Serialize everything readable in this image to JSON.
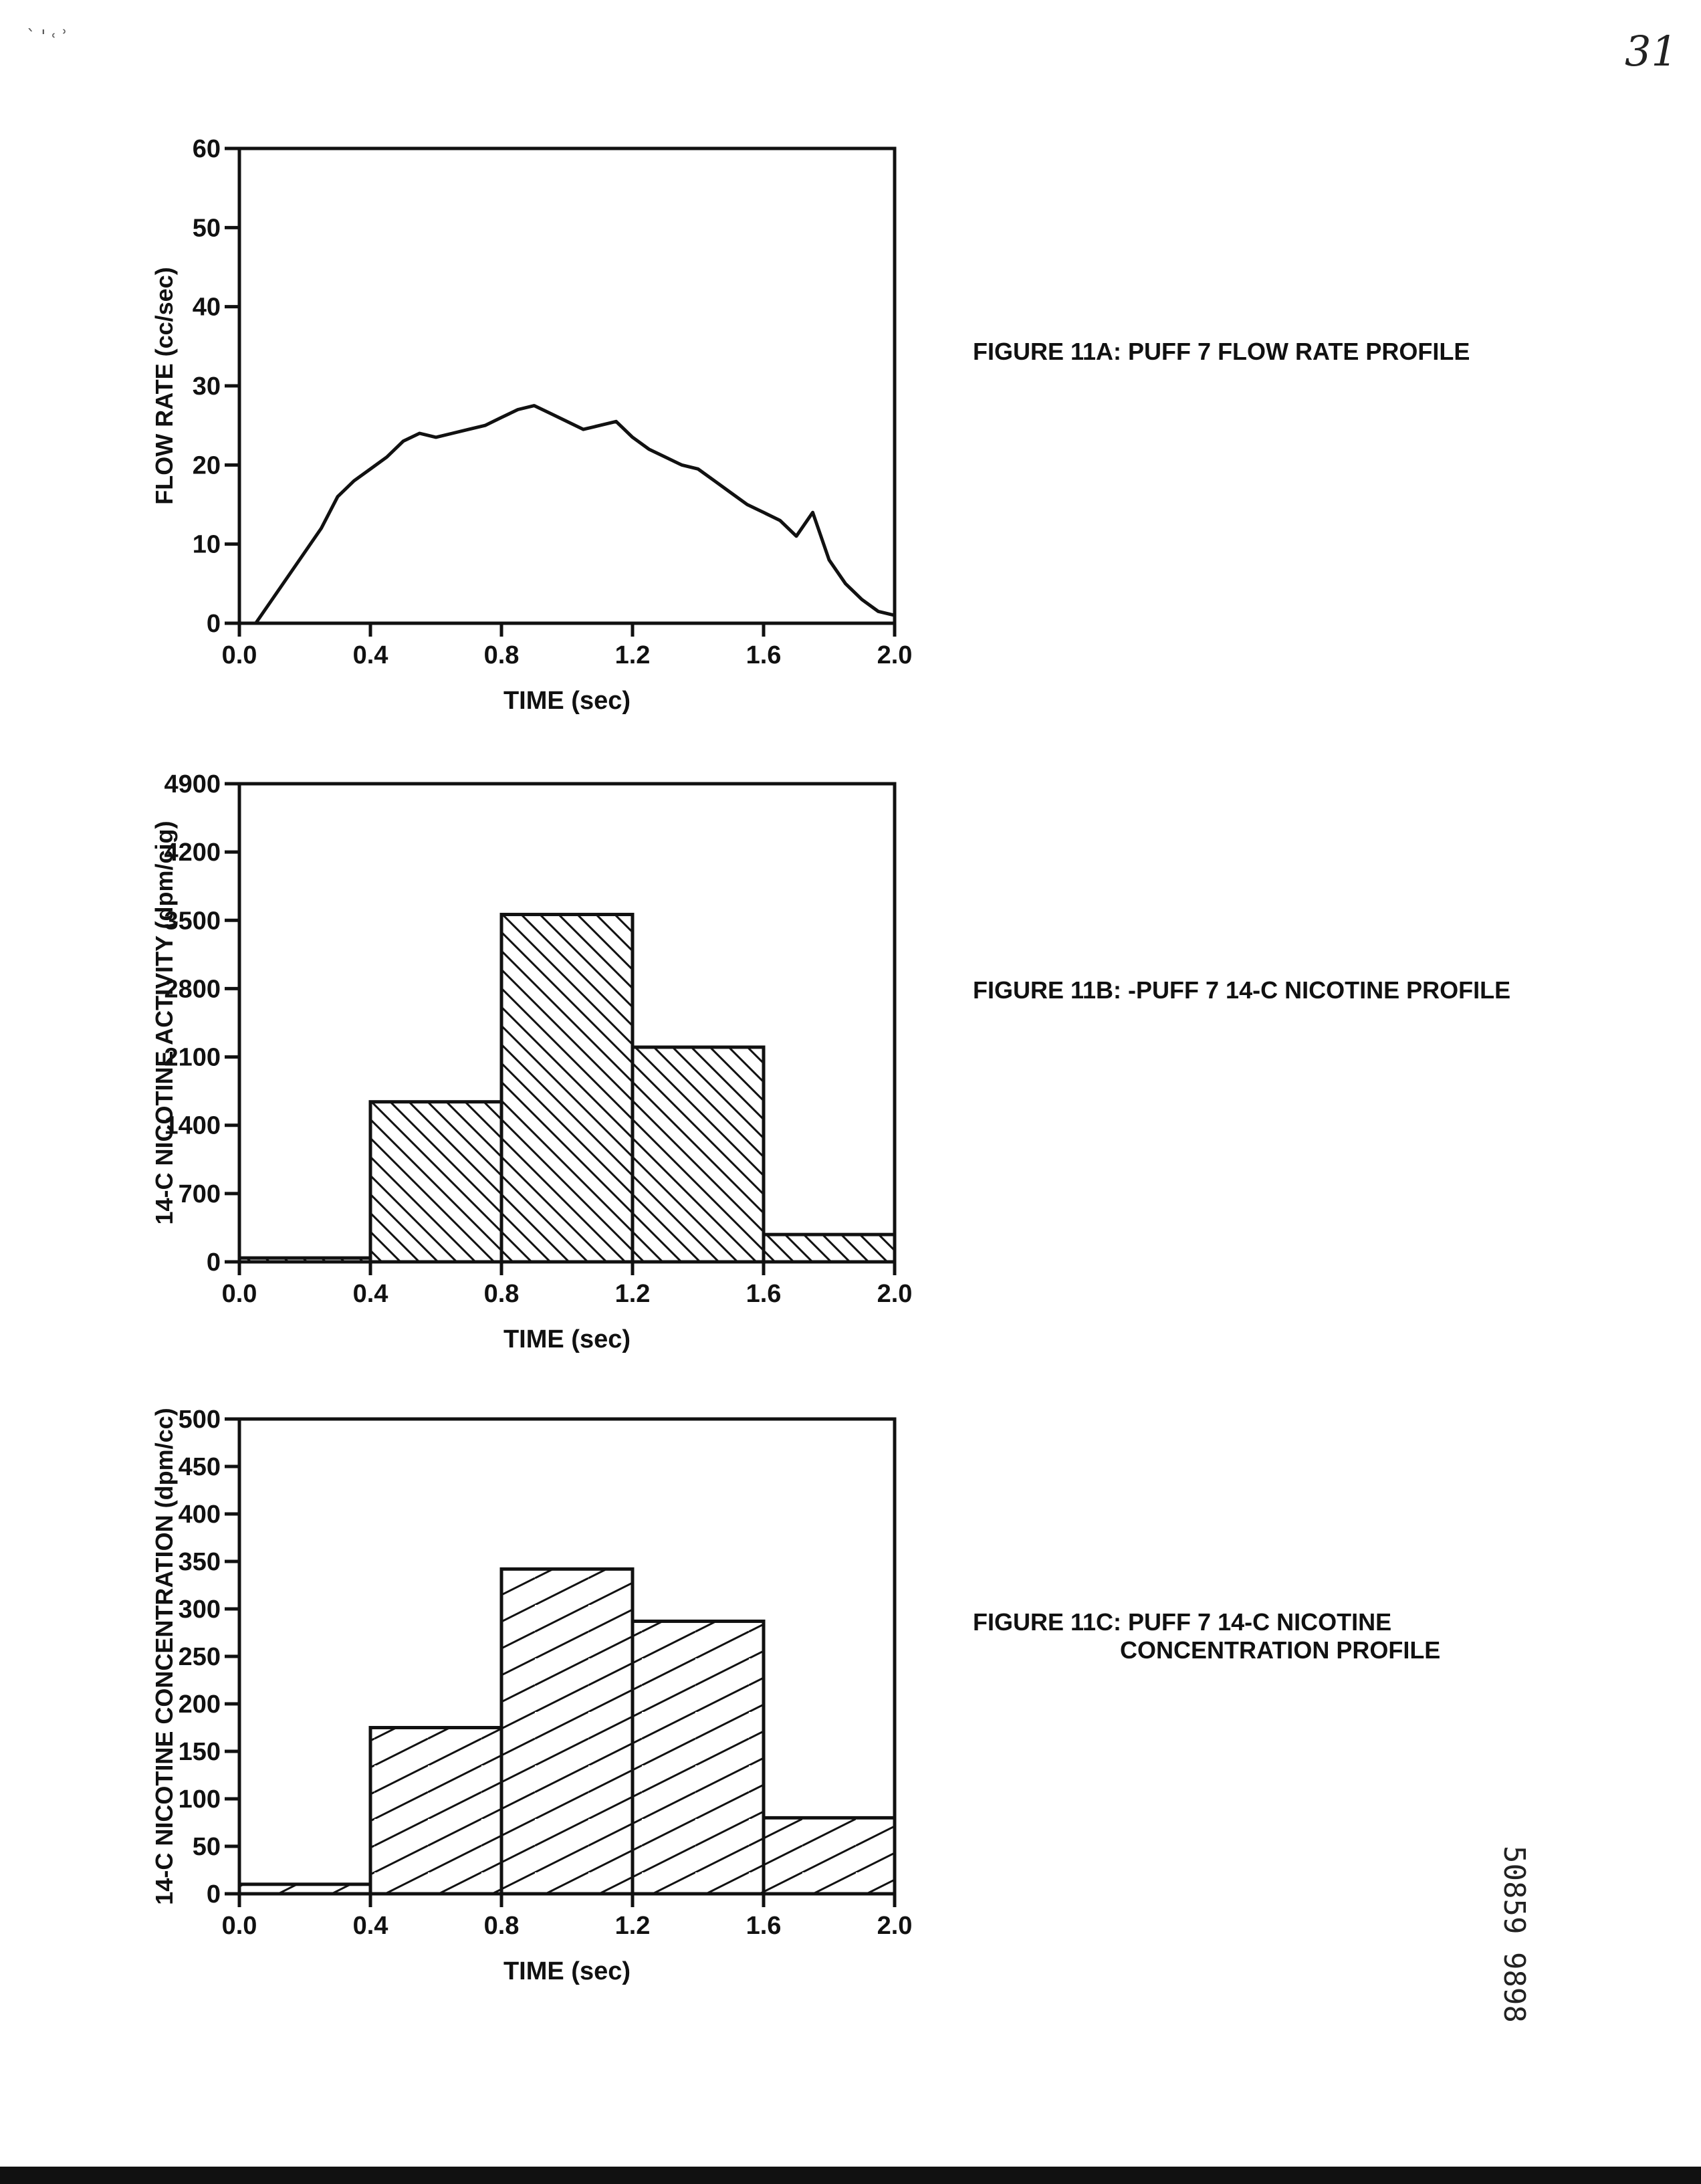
{
  "page": {
    "page_number": "31",
    "top_marks": "` ' ˓ ʾ",
    "document_id": "50859 9898"
  },
  "captions": {
    "fig11a": "FIGURE 11A:  PUFF 7 FLOW RATE PROFILE",
    "fig11b": "FIGURE 11B: -PUFF 7 14-C NICOTINE PROFILE",
    "fig11c_line1": "FIGURE 11C:  PUFF 7 14-C NICOTINE",
    "fig11c_line2": "CONCENTRATION PROFILE"
  },
  "chart_data": [
    {
      "id": "fig11a",
      "type": "line",
      "title": "",
      "xlabel": "TIME (sec)",
      "ylabel": "FLOW RATE (cc/sec)",
      "xlim": [
        0,
        2.0
      ],
      "ylim": [
        0,
        60
      ],
      "xticks": [
        "0.0",
        "0.4",
        "0.8",
        "1.2",
        "1.6",
        "2.0"
      ],
      "yticks": [
        "0",
        "10",
        "20",
        "30",
        "40",
        "50",
        "60"
      ],
      "grid": false,
      "series": [
        {
          "x": [
            0.05,
            0.1,
            0.15,
            0.2,
            0.25,
            0.3,
            0.35,
            0.4,
            0.45,
            0.5,
            0.55,
            0.6,
            0.65,
            0.7,
            0.75,
            0.8,
            0.85,
            0.9,
            0.95,
            1.0,
            1.05,
            1.1,
            1.15,
            1.2,
            1.25,
            1.3,
            1.35,
            1.4,
            1.45,
            1.5,
            1.55,
            1.6,
            1.65,
            1.7,
            1.75,
            1.8,
            1.85,
            1.9,
            1.95,
            2.0
          ],
          "values": [
            0,
            3,
            6,
            9,
            12,
            16,
            18,
            19.5,
            21,
            23,
            24,
            23.5,
            24,
            24.5,
            25,
            26,
            27,
            27.5,
            26.5,
            25.5,
            24.5,
            25,
            25.5,
            23.5,
            22,
            21,
            20,
            19.5,
            18,
            16.5,
            15,
            14,
            13,
            11,
            14,
            8,
            5,
            3,
            1.5,
            1
          ]
        }
      ]
    },
    {
      "id": "fig11b",
      "type": "bar",
      "title": "",
      "xlabel": "TIME (sec)",
      "ylabel": "14-C NICOTINE ACTIVITY (dpm/cig)",
      "xlim": [
        0,
        2.0
      ],
      "ylim": [
        0,
        4900
      ],
      "xticks": [
        "0.0",
        "0.4",
        "0.8",
        "1.2",
        "1.6",
        "2.0"
      ],
      "yticks": [
        "0",
        "700",
        "1400",
        "2100",
        "2800",
        "3500",
        "4200",
        "4900"
      ],
      "grid": false,
      "bins": [
        [
          0.0,
          0.4
        ],
        [
          0.4,
          0.8
        ],
        [
          0.8,
          1.2
        ],
        [
          1.2,
          1.6
        ],
        [
          1.6,
          2.0
        ]
      ],
      "values": [
        40,
        1640,
        3560,
        2200,
        280
      ]
    },
    {
      "id": "fig11c",
      "type": "bar",
      "title": "",
      "xlabel": "TIME (sec)",
      "ylabel": "14-C NICOTINE CONCENTRATION (dpm/cc)",
      "xlim": [
        0,
        2.0
      ],
      "ylim": [
        0,
        500
      ],
      "xticks": [
        "0.0",
        "0.4",
        "0.8",
        "1.2",
        "1.6",
        "2.0"
      ],
      "yticks": [
        "0",
        "50",
        "100",
        "150",
        "200",
        "250",
        "300",
        "350",
        "400",
        "450",
        "500"
      ],
      "grid": false,
      "bins": [
        [
          0.0,
          0.4
        ],
        [
          0.4,
          0.8
        ],
        [
          0.8,
          1.2
        ],
        [
          1.2,
          1.6
        ],
        [
          1.6,
          2.0
        ]
      ],
      "values": [
        10,
        175,
        342,
        287,
        80
      ]
    }
  ]
}
